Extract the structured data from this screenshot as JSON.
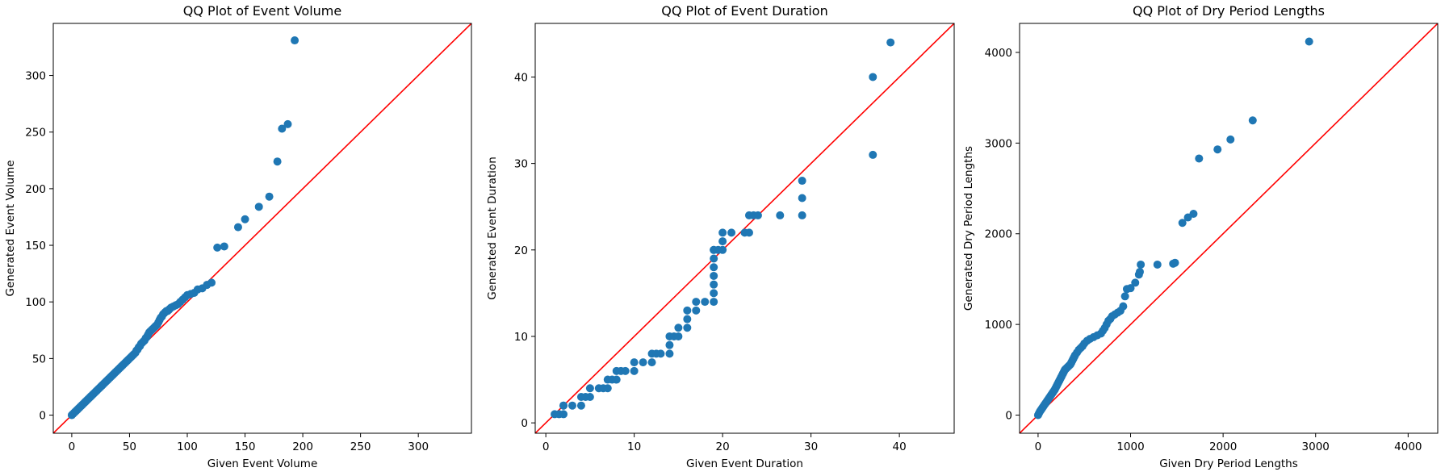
{
  "colors": {
    "points": "#1f77b4",
    "reference_line": "#ff0000",
    "frame": "#000000"
  },
  "chart_data": [
    {
      "type": "scatter",
      "title": "QQ Plot of Event Volume",
      "xlabel": "Given Event Volume",
      "ylabel": "Generated Event Volume",
      "xlim": [
        -16,
        346
      ],
      "ylim": [
        -16,
        346
      ],
      "xticks": [
        0,
        50,
        100,
        150,
        200,
        250,
        300
      ],
      "yticks": [
        0,
        50,
        100,
        150,
        200,
        250,
        300
      ],
      "reference_line": "y = x",
      "grid": false,
      "series": [
        {
          "x": [
            0,
            1,
            2,
            3,
            4,
            5,
            6,
            7,
            8,
            9,
            10,
            11,
            12,
            13,
            14,
            15,
            16,
            17,
            18,
            19,
            20,
            21,
            22,
            23,
            24,
            25,
            26,
            27,
            28,
            29,
            30,
            31,
            32,
            33,
            34,
            35,
            36,
            37,
            38,
            39,
            40,
            41,
            42,
            43,
            44,
            45,
            46,
            47,
            48,
            49,
            50,
            51,
            52,
            53,
            54,
            55,
            56,
            57,
            58,
            59,
            60,
            61,
            62,
            63,
            64,
            65,
            66,
            67,
            68,
            69,
            70,
            71,
            72,
            73,
            74,
            75,
            76,
            77,
            78,
            79,
            80,
            81,
            82,
            83,
            84,
            85,
            86,
            88,
            90,
            92,
            94,
            96,
            98,
            100,
            103,
            106,
            109,
            113,
            117,
            121,
            126,
            132,
            144,
            150,
            162,
            171,
            178,
            182,
            187,
            193
          ],
          "y": [
            0,
            1,
            2,
            3,
            4,
            5,
            6,
            7,
            8,
            9,
            10,
            11,
            12,
            13,
            14,
            15,
            16,
            17,
            18,
            19,
            20,
            21,
            22,
            23,
            24,
            25,
            26,
            27,
            28,
            29,
            30,
            31,
            32,
            33,
            34,
            35,
            36,
            37,
            38,
            39,
            40,
            41,
            42,
            43,
            44,
            45,
            46,
            47,
            48,
            49,
            50,
            51,
            52,
            53,
            54,
            55,
            57,
            58,
            60,
            61,
            63,
            64,
            65,
            66,
            68,
            69,
            71,
            73,
            74,
            75,
            76,
            77,
            78,
            79,
            80,
            82,
            84,
            86,
            87,
            89,
            90,
            91,
            92,
            92,
            93,
            94,
            95,
            96,
            97,
            98,
            100,
            102,
            104,
            106,
            107,
            108,
            111,
            112,
            115,
            117,
            148,
            149,
            166,
            173,
            184,
            193,
            224,
            253,
            257,
            331
          ]
        }
      ]
    },
    {
      "type": "scatter",
      "title": "QQ Plot of Event Duration",
      "xlabel": "Given Event Duration",
      "ylabel": "Generated Event Duration",
      "xlim": [
        -1.2,
        46.2
      ],
      "ylim": [
        -1.2,
        46.2
      ],
      "xticks": [
        0,
        10,
        20,
        30,
        40
      ],
      "yticks": [
        0,
        10,
        20,
        30,
        40
      ],
      "reference_line": "y = x",
      "grid": false,
      "series": [
        {
          "x": [
            1,
            1.5,
            2,
            2,
            2,
            3,
            4,
            4,
            4.5,
            5,
            5,
            6,
            6.5,
            7,
            7,
            7.5,
            8,
            8,
            8.5,
            9,
            10,
            10,
            11,
            12,
            12,
            12.5,
            13,
            14,
            14,
            14,
            14.5,
            15,
            15,
            16,
            16,
            16,
            17,
            17,
            18,
            19,
            19,
            19,
            19,
            19,
            19,
            19,
            19,
            19.5,
            20,
            20,
            20,
            21,
            22.5,
            23,
            23,
            23.5,
            24,
            26.5,
            29,
            29,
            29,
            37,
            37,
            39
          ],
          "y": [
            1,
            1,
            1,
            2,
            2,
            2,
            2,
            3,
            3,
            3,
            4,
            4,
            4,
            4,
            5,
            5,
            5,
            6,
            6,
            6,
            6,
            7,
            7,
            7,
            8,
            8,
            8,
            8,
            9,
            10,
            10,
            10,
            11,
            11,
            12,
            13,
            13,
            14,
            14,
            14,
            15,
            16,
            17,
            18,
            19,
            20,
            20,
            20,
            20,
            21,
            22,
            22,
            22,
            22,
            24,
            24,
            24,
            24,
            24,
            26,
            28,
            31,
            40,
            44
          ]
        }
      ]
    },
    {
      "type": "scatter",
      "title": "QQ Plot of Dry Period Lengths",
      "xlabel": "Given Dry Period Lengths",
      "ylabel": "Generated Dry Period Lengths",
      "xlim": [
        -200,
        4320
      ],
      "ylim": [
        -200,
        4320
      ],
      "xticks": [
        0,
        1000,
        2000,
        3000,
        4000
      ],
      "yticks": [
        0,
        1000,
        2000,
        3000,
        4000
      ],
      "reference_line": "y = x",
      "grid": false,
      "series": [
        {
          "x": [
            0,
            10,
            20,
            30,
            40,
            50,
            60,
            70,
            80,
            90,
            100,
            110,
            120,
            130,
            140,
            150,
            160,
            170,
            180,
            190,
            200,
            210,
            220,
            230,
            240,
            250,
            260,
            270,
            280,
            290,
            300,
            310,
            320,
            330,
            340,
            350,
            360,
            370,
            380,
            390,
            400,
            420,
            440,
            460,
            480,
            500,
            530,
            560,
            600,
            640,
            680,
            700,
            720,
            740,
            760,
            780,
            800,
            830,
            860,
            890,
            920,
            940,
            960,
            1000,
            1050,
            1090,
            1100,
            1110,
            1290,
            1460,
            1480,
            1560,
            1620,
            1680,
            1740,
            1940,
            2080,
            2320,
            2930
          ],
          "y": [
            0,
            20,
            40,
            55,
            70,
            85,
            100,
            115,
            130,
            145,
            160,
            175,
            190,
            205,
            220,
            235,
            250,
            265,
            280,
            300,
            320,
            340,
            360,
            380,
            400,
            420,
            440,
            460,
            480,
            500,
            510,
            520,
            530,
            540,
            550,
            560,
            580,
            600,
            620,
            640,
            660,
            690,
            720,
            740,
            760,
            790,
            820,
            840,
            860,
            880,
            900,
            930,
            960,
            1000,
            1040,
            1060,
            1090,
            1110,
            1130,
            1150,
            1200,
            1310,
            1390,
            1400,
            1460,
            1550,
            1580,
            1660,
            1660,
            1670,
            1680,
            2120,
            2180,
            2220,
            2830,
            2930,
            3040,
            3250,
            4120
          ]
        }
      ]
    }
  ]
}
